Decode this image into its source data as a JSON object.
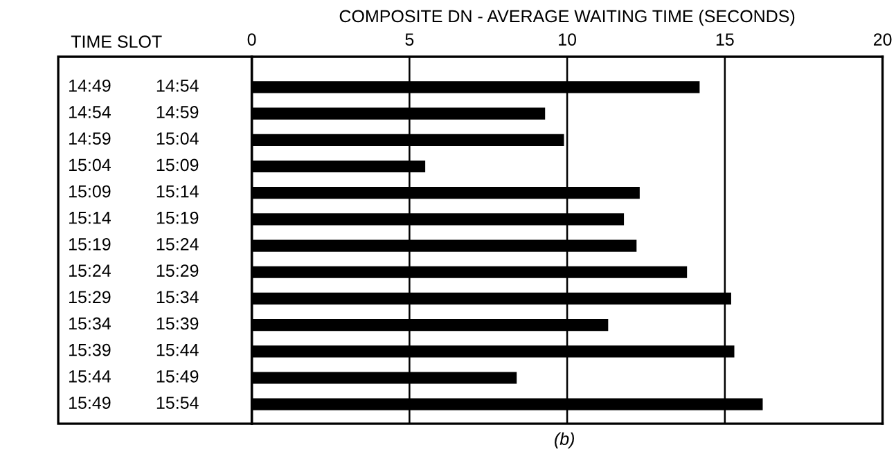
{
  "chart_data": {
    "type": "bar",
    "orientation": "horizontal",
    "title": "COMPOSITE DN - AVERAGE WAITING TIME (SECONDS)",
    "categories": [
      "14:49 14:54",
      "14:54 14:59",
      "14:59 15:04",
      "15:04 15:09",
      "15:09 15:14",
      "15:14 15:19",
      "15:19 15:24",
      "15:24 15:29",
      "15:29 15:34",
      "15:34 15:39",
      "15:39 15:44",
      "15:44 15:49",
      "15:49 15:54"
    ],
    "values": [
      14.2,
      9.3,
      9.9,
      5.5,
      12.3,
      11.8,
      12.2,
      13.8,
      15.2,
      11.3,
      15.3,
      8.4,
      16.2
    ],
    "color": "#000000",
    "xlim": [
      0,
      20
    ],
    "xticks": [
      0,
      5,
      10,
      15,
      20
    ],
    "grid": "x",
    "annotations": [
      "TIME SLOT",
      "(b)"
    ]
  }
}
